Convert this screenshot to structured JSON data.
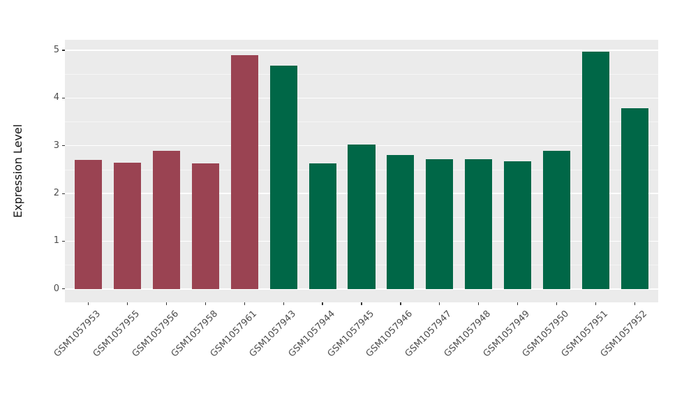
{
  "chart_data": {
    "type": "bar",
    "title": "",
    "ylabel": "Expression Level",
    "xlabel": "",
    "categories": [
      "GSM1057953",
      "GSM1057955",
      "GSM1057956",
      "GSM1057958",
      "GSM1057961",
      "GSM1057943",
      "GSM1057944",
      "GSM1057945",
      "GSM1057946",
      "GSM1057947",
      "GSM1057948",
      "GSM1057949",
      "GSM1057950",
      "GSM1057951",
      "GSM1057952"
    ],
    "values": [
      2.7,
      2.64,
      2.89,
      2.63,
      4.9,
      4.68,
      2.63,
      3.02,
      2.81,
      2.72,
      2.72,
      2.68,
      2.9,
      4.97,
      3.78
    ],
    "bar_groups": [
      "group1",
      "group1",
      "group1",
      "group1",
      "group1",
      "group2",
      "group2",
      "group2",
      "group2",
      "group2",
      "group2",
      "group2",
      "group2",
      "group2",
      "group2"
    ],
    "group_colors": {
      "group1": "#9A4352",
      "group2": "#006747"
    },
    "y_major_ticks": [
      0,
      1,
      2,
      3,
      4,
      5
    ],
    "y_minor_ticks": [
      0.5,
      1.5,
      2.5,
      3.5,
      4.5
    ],
    "ylim": [
      -0.28,
      5.22
    ],
    "grid": true,
    "legend": "none",
    "panel_background": "#EBEBEB",
    "major_grid_color": "#FFFFFF",
    "minor_grid_color": "#F5F5F5",
    "tick_color": "#333333",
    "tick_label_color": "#4D4D4D",
    "axis_title_color": "#111111",
    "figure_background": "#FFFFFF"
  }
}
